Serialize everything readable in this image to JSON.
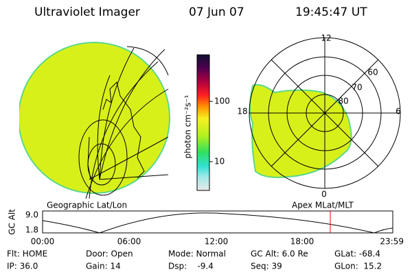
{
  "header": {
    "title": "Ultraviolet Imager",
    "date": "07 Jun 07",
    "time": "19:45:47 UT"
  },
  "colorbar": {
    "label": "photon cm⁻²s⁻¹",
    "ticks": [
      "100",
      "10"
    ]
  },
  "polar": {
    "labels": [
      "12",
      "60",
      "70",
      "80",
      "18",
      "6",
      "0"
    ]
  },
  "captions": {
    "left": "Geographic Lat/Lon",
    "right": "Apex MLat/MLT"
  },
  "altitude": {
    "axis_label": "GC Alt",
    "yticks": [
      "9.0",
      "1.8"
    ],
    "xticks": [
      "00:00",
      "06:00",
      "12:00",
      "18:00",
      "23:59"
    ]
  },
  "status": {
    "rows": [
      [
        "Flt: HOME",
        "Door: Open",
        "Mode: Normal",
        "GC Alt: 6.0 Re",
        "GLat: -68.4"
      ],
      [
        "IP: 36.0",
        "Gain: 14",
        "Dsp:    -9.4",
        "Seq: 39",
        "GLon:  15.2"
      ]
    ]
  }
}
